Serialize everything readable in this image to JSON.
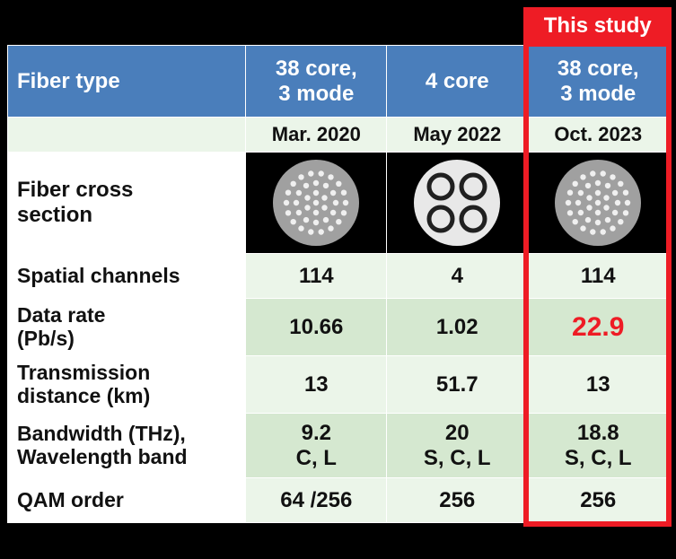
{
  "banner": {
    "label": "This study"
  },
  "table": {
    "header_bg": "#4a7ebb",
    "header_fg": "#ffffff",
    "row_bg_light": "#ebf5e9",
    "row_bg_dark": "#d5e8d0",
    "banner_bg": "#ee1c25",
    "highlight_color": "#ee1c25",
    "col_widths": [
      0.36,
      0.213,
      0.213,
      0.213
    ],
    "header": {
      "label": "Fiber type",
      "cols": [
        "38 core,\n3 mode",
        "4 core",
        "38 core,\n3 mode"
      ]
    },
    "date_row": [
      "Mar. 2020",
      "May 2022",
      "Oct. 2023"
    ],
    "cross_section_label": "Fiber cross\nsection",
    "rows": [
      {
        "label": "Spatial channels",
        "values": [
          "114",
          "4",
          "114"
        ],
        "bg": "light",
        "h": "short"
      },
      {
        "label": "Data rate\n(Pb/s)",
        "values": [
          "10.66",
          "1.02",
          "22.9"
        ],
        "bg": "dark",
        "h": "tall",
        "highlight_col": 2
      },
      {
        "label": "Transmission\ndistance (km)",
        "values": [
          "13",
          "51.7",
          "13"
        ],
        "bg": "light",
        "h": "tall"
      },
      {
        "label": "Bandwidth (THz),\nWavelength band",
        "values": [
          "9.2\nC, L",
          "20\nS, C, L",
          "18.8\nS, C, L"
        ],
        "bg": "dark",
        "h": "taller"
      },
      {
        "label": "QAM order",
        "values": [
          "64 /256",
          "256",
          "256"
        ],
        "bg": "light",
        "h": "short"
      }
    ],
    "cross_sections": [
      {
        "type": "38core",
        "cladding": "#a0a0a0",
        "core": "#f0f0f0",
        "r": 48,
        "core_r": 3.2
      },
      {
        "type": "4core",
        "cladding": "#e8e8e8",
        "core_stroke": "#202020",
        "r": 48,
        "core_r": 13,
        "core_stroke_w": 5
      },
      {
        "type": "38core",
        "cladding": "#a0a0a0",
        "core": "#f0f0f0",
        "r": 48,
        "core_r": 3.2
      }
    ]
  }
}
